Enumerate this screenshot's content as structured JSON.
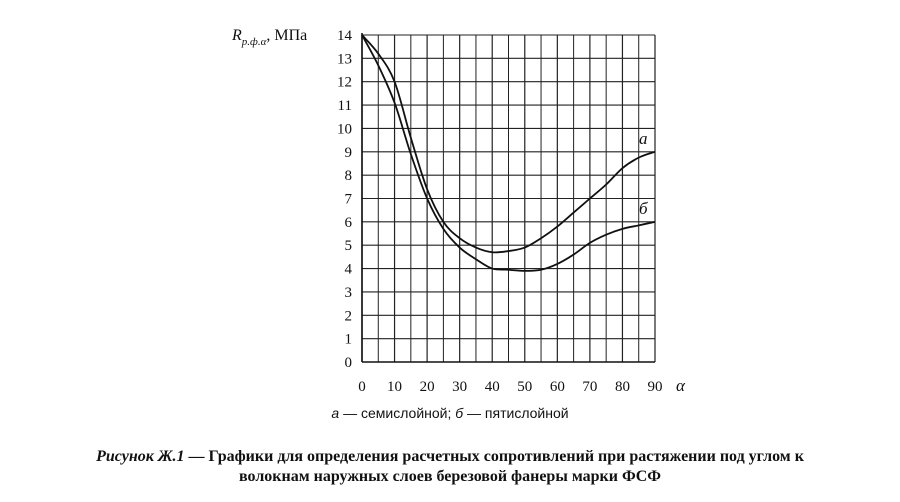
{
  "chart_data": {
    "type": "line",
    "ylabel_main": "R",
    "ylabel_sub": "р.ф.α",
    "ylabel_unit": ", МПа",
    "xlabel": "α",
    "xlim": [
      0,
      90
    ],
    "ylim": [
      0,
      14
    ],
    "x_ticks": [
      0,
      10,
      20,
      30,
      40,
      50,
      60,
      70,
      80,
      90
    ],
    "y_ticks": [
      0,
      1,
      2,
      3,
      4,
      5,
      6,
      7,
      8,
      9,
      10,
      11,
      12,
      13,
      14
    ],
    "grid": true,
    "series": [
      {
        "name": "а",
        "x": [
          0,
          5,
          10,
          15,
          20,
          25,
          30,
          35,
          40,
          45,
          50,
          55,
          60,
          65,
          70,
          75,
          80,
          85,
          90
        ],
        "y": [
          14,
          13.2,
          12.0,
          9.6,
          7.4,
          6.0,
          5.3,
          4.9,
          4.7,
          4.75,
          4.9,
          5.3,
          5.8,
          6.4,
          7.0,
          7.6,
          8.3,
          8.75,
          9.0
        ]
      },
      {
        "name": "б",
        "x": [
          0,
          5,
          10,
          15,
          20,
          25,
          30,
          35,
          40,
          45,
          50,
          55,
          60,
          65,
          70,
          75,
          80,
          85,
          90
        ],
        "y": [
          14,
          12.7,
          11.1,
          8.9,
          7.0,
          5.7,
          4.9,
          4.4,
          4.0,
          3.95,
          3.9,
          3.95,
          4.2,
          4.6,
          5.1,
          5.45,
          5.7,
          5.85,
          6.0
        ]
      }
    ]
  },
  "legend": {
    "a_letter": "а",
    "a_text": " — семислойной; ",
    "b_letter": "б",
    "b_text": " — пятислойной"
  },
  "caption": {
    "label": "Рисунок Ж.1",
    "line1": " — Графики для определения расчетных сопротивлений при растяжении под углом к",
    "line2": "волокнам наружных слоев березовой фанеры марки ФСФ"
  }
}
